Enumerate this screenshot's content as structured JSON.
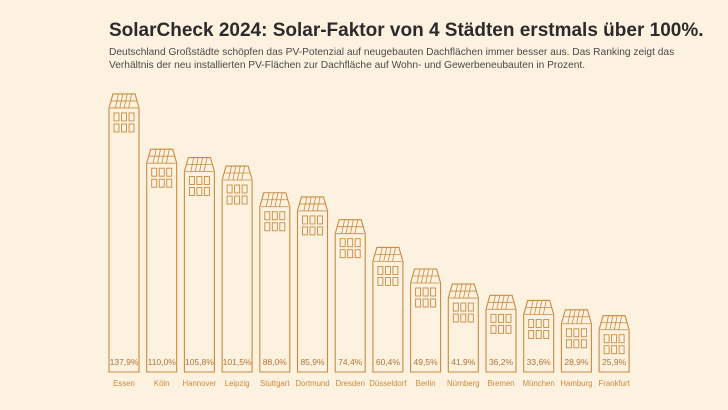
{
  "chart_data": {
    "type": "bar",
    "title": "SolarCheck 2024: Solar-Faktor von 4 Städten erstmals über 100%.",
    "subtitle": "Deutschland Großstädte schöpfen das PV-Potenzial auf neugebauten Dachflächen immer besser aus. Das Ranking zeigt das Verhältnis der neu installierten PV-Flächen zur Dachfläche auf Wohn- und Gewerbeneubauten in Prozent.",
    "xlabel": "",
    "ylabel": "",
    "categories": [
      "Essen",
      "Köln",
      "Hannover",
      "Leipzig",
      "Stuttgart",
      "Dortmund",
      "Dresden",
      "Düsseldorf",
      "Berlin",
      "Nürnberg",
      "Bremen",
      "München",
      "Hamburg",
      "Frankfurt"
    ],
    "values": [
      137.9,
      110.0,
      105.8,
      101.5,
      88.0,
      85.9,
      74.4,
      60.4,
      49.5,
      41.9,
      36.2,
      33.6,
      28.9,
      25.9
    ],
    "value_labels": [
      "137,9%",
      "110,0%",
      "105,8%",
      "101,5%",
      "88,0%",
      "85,9%",
      "74,4%",
      "60,4%",
      "49,5%",
      "41,9%",
      "36,2%",
      "33,6%",
      "28,9%",
      "25,9%"
    ],
    "ylim": [
      0,
      140
    ],
    "grid": false,
    "colors": {
      "stroke": "#c98a3e",
      "stroke_light": "#dcae82",
      "text": "#b07433",
      "label": "#c98a3e"
    }
  }
}
